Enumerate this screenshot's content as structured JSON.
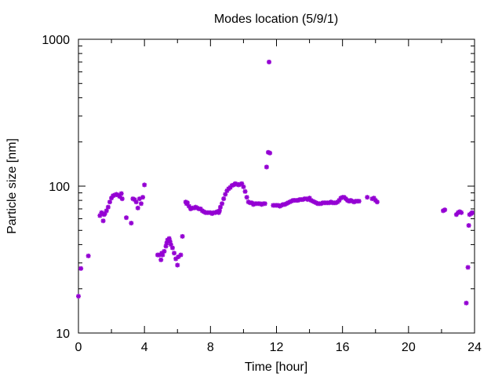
{
  "chart_data": {
    "type": "scatter",
    "title": "Modes location (5/9/1)",
    "xlabel": "Time [hour]",
    "ylabel": "Particle size [nm]",
    "xlim": [
      0,
      24
    ],
    "ylim": [
      10,
      1000
    ],
    "yscale": "log",
    "x_ticks": [
      0,
      4,
      8,
      12,
      16,
      20,
      24
    ],
    "x_minor_ticks": [
      2,
      6,
      10,
      14,
      18,
      22
    ],
    "y_ticks": [
      10,
      100,
      1000
    ],
    "grid": false,
    "legend": "none",
    "marker_color": "#9400d3",
    "marker": "star",
    "points": [
      [
        0.0,
        17.8
      ],
      [
        0.15,
        27.5
      ],
      [
        0.6,
        33.5
      ],
      [
        1.3,
        63
      ],
      [
        1.4,
        66
      ],
      [
        1.5,
        58
      ],
      [
        1.55,
        64
      ],
      [
        1.6,
        65
      ],
      [
        1.7,
        68
      ],
      [
        1.8,
        72
      ],
      [
        1.9,
        78
      ],
      [
        2.0,
        83
      ],
      [
        2.1,
        86
      ],
      [
        2.2,
        87
      ],
      [
        2.3,
        88
      ],
      [
        2.4,
        87
      ],
      [
        2.5,
        85
      ],
      [
        2.6,
        89
      ],
      [
        2.65,
        82
      ],
      [
        2.9,
        61
      ],
      [
        3.2,
        56
      ],
      [
        3.3,
        82
      ],
      [
        3.4,
        81
      ],
      [
        3.5,
        78
      ],
      [
        3.6,
        71
      ],
      [
        3.7,
        82
      ],
      [
        3.8,
        76
      ],
      [
        3.9,
        84
      ],
      [
        4.0,
        102
      ],
      [
        4.8,
        34
      ],
      [
        4.9,
        34
      ],
      [
        5.0,
        31.5
      ],
      [
        5.05,
        35
      ],
      [
        5.1,
        34
      ],
      [
        5.2,
        36
      ],
      [
        5.3,
        39
      ],
      [
        5.35,
        41
      ],
      [
        5.4,
        43
      ],
      [
        5.5,
        44
      ],
      [
        5.55,
        42
      ],
      [
        5.6,
        40
      ],
      [
        5.7,
        38
      ],
      [
        5.8,
        35
      ],
      [
        5.9,
        32
      ],
      [
        6.0,
        29
      ],
      [
        6.05,
        33
      ],
      [
        6.2,
        34
      ],
      [
        6.3,
        45.5
      ],
      [
        6.5,
        78
      ],
      [
        6.55,
        76
      ],
      [
        6.6,
        77
      ],
      [
        6.7,
        73
      ],
      [
        6.8,
        70
      ],
      [
        6.9,
        71
      ],
      [
        7.0,
        71
      ],
      [
        7.1,
        72
      ],
      [
        7.2,
        71
      ],
      [
        7.3,
        70
      ],
      [
        7.4,
        70
      ],
      [
        7.5,
        68
      ],
      [
        7.6,
        67
      ],
      [
        7.7,
        66
      ],
      [
        7.8,
        66
      ],
      [
        7.9,
        66
      ],
      [
        8.0,
        66
      ],
      [
        8.1,
        65
      ],
      [
        8.2,
        66
      ],
      [
        8.3,
        66
      ],
      [
        8.4,
        67
      ],
      [
        8.5,
        66
      ],
      [
        8.55,
        68
      ],
      [
        8.6,
        72
      ],
      [
        8.7,
        76
      ],
      [
        8.8,
        82
      ],
      [
        8.9,
        88
      ],
      [
        9.0,
        93
      ],
      [
        9.1,
        96
      ],
      [
        9.2,
        98
      ],
      [
        9.3,
        101
      ],
      [
        9.4,
        102
      ],
      [
        9.5,
        104
      ],
      [
        9.6,
        103
      ],
      [
        9.7,
        102
      ],
      [
        9.8,
        103
      ],
      [
        9.9,
        104
      ],
      [
        10.0,
        99
      ],
      [
        10.1,
        92
      ],
      [
        10.2,
        84
      ],
      [
        10.3,
        78
      ],
      [
        10.4,
        77
      ],
      [
        10.5,
        77
      ],
      [
        10.6,
        75
      ],
      [
        10.7,
        76
      ],
      [
        10.8,
        76
      ],
      [
        10.9,
        76
      ],
      [
        11.0,
        76
      ],
      [
        11.1,
        75
      ],
      [
        11.2,
        76
      ],
      [
        11.3,
        76
      ],
      [
        11.4,
        135
      ],
      [
        11.5,
        170
      ],
      [
        11.6,
        168
      ],
      [
        11.55,
        700
      ],
      [
        11.8,
        74
      ],
      [
        11.9,
        74
      ],
      [
        12.0,
        74
      ],
      [
        12.1,
        74
      ],
      [
        12.2,
        73
      ],
      [
        12.3,
        74
      ],
      [
        12.4,
        75
      ],
      [
        12.5,
        75
      ],
      [
        12.6,
        76
      ],
      [
        12.7,
        77
      ],
      [
        12.8,
        78
      ],
      [
        12.9,
        79
      ],
      [
        13.0,
        80
      ],
      [
        13.1,
        80
      ],
      [
        13.2,
        80
      ],
      [
        13.3,
        80
      ],
      [
        13.4,
        81
      ],
      [
        13.5,
        81
      ],
      [
        13.6,
        81
      ],
      [
        13.7,
        82
      ],
      [
        13.8,
        82
      ],
      [
        13.9,
        81
      ],
      [
        14.0,
        83
      ],
      [
        14.1,
        80
      ],
      [
        14.2,
        79
      ],
      [
        14.3,
        78
      ],
      [
        14.4,
        77
      ],
      [
        14.5,
        76
      ],
      [
        14.6,
        76
      ],
      [
        14.7,
        76
      ],
      [
        14.8,
        77
      ],
      [
        14.9,
        77
      ],
      [
        15.0,
        77
      ],
      [
        15.1,
        77
      ],
      [
        15.2,
        77
      ],
      [
        15.3,
        78
      ],
      [
        15.4,
        77
      ],
      [
        15.5,
        77
      ],
      [
        15.6,
        77
      ],
      [
        15.7,
        78
      ],
      [
        15.8,
        80
      ],
      [
        15.9,
        83
      ],
      [
        16.0,
        84
      ],
      [
        16.1,
        84
      ],
      [
        16.2,
        82
      ],
      [
        16.3,
        80
      ],
      [
        16.4,
        79
      ],
      [
        16.5,
        80
      ],
      [
        16.6,
        79
      ],
      [
        16.7,
        78
      ],
      [
        16.8,
        79
      ],
      [
        16.9,
        79
      ],
      [
        17.0,
        79
      ],
      [
        17.5,
        84
      ],
      [
        17.8,
        82
      ],
      [
        17.9,
        83
      ],
      [
        18.0,
        80
      ],
      [
        18.1,
        78
      ],
      [
        22.1,
        68
      ],
      [
        22.2,
        69
      ],
      [
        22.9,
        64
      ],
      [
        23.0,
        66
      ],
      [
        23.1,
        67
      ],
      [
        23.2,
        66
      ],
      [
        23.5,
        16
      ],
      [
        23.6,
        28
      ],
      [
        23.65,
        54
      ],
      [
        23.7,
        64
      ],
      [
        23.8,
        65
      ],
      [
        23.85,
        66
      ]
    ]
  }
}
